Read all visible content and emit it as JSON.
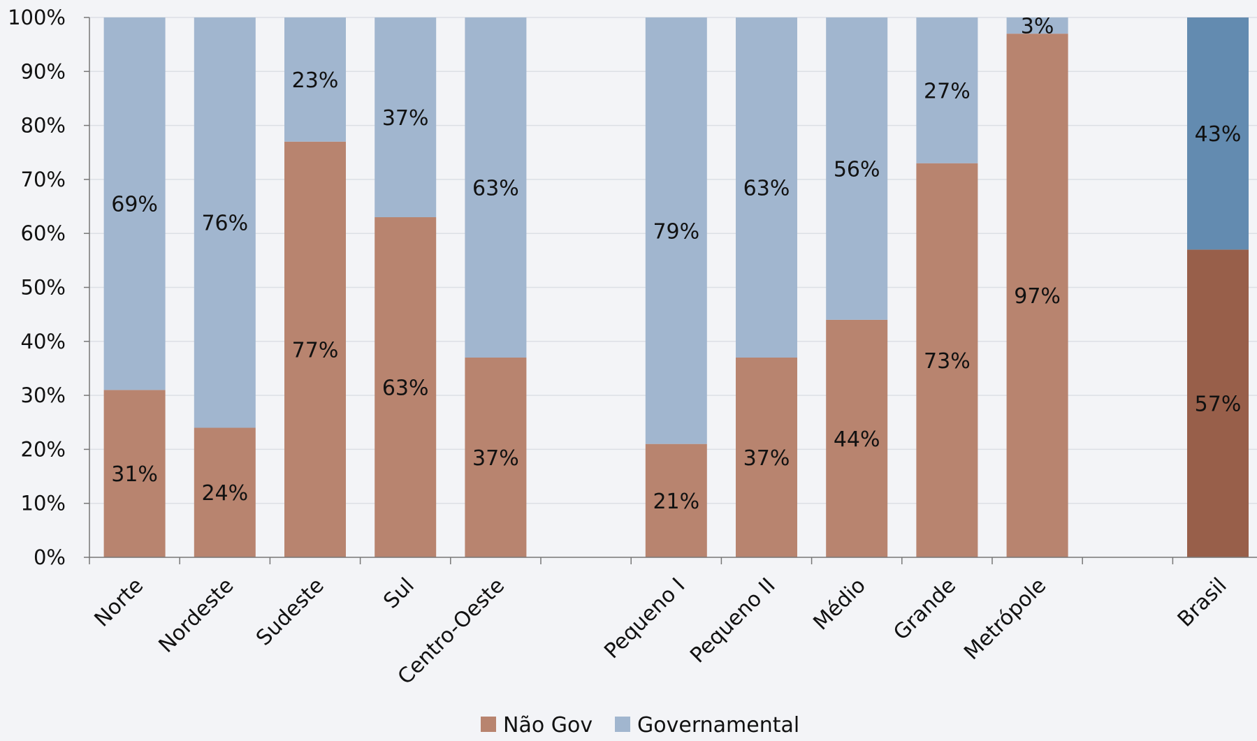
{
  "chart_data": {
    "type": "bar",
    "stacked": true,
    "percent_stacked": true,
    "title": "",
    "xlabel": "",
    "ylabel": "",
    "ylim": [
      0,
      100
    ],
    "yticks": [
      "0%",
      "10%",
      "20%",
      "30%",
      "40%",
      "50%",
      "60%",
      "70%",
      "80%",
      "90%",
      "100%"
    ],
    "grid": true,
    "legend_position": "bottom",
    "categories": [
      "Norte",
      "Nordeste",
      "Sudeste",
      "Sul",
      "Centro-Oeste",
      "",
      "Pequeno I",
      "Pequeno II",
      "Médio",
      "Grande",
      "Metrópole",
      "",
      "Brasil"
    ],
    "series": [
      {
        "name": "Não Gov",
        "color": "#b8846f",
        "highlight_color": "#985f4a",
        "values": [
          31,
          24,
          77,
          63,
          37,
          null,
          21,
          37,
          44,
          73,
          97,
          null,
          57
        ],
        "labels": [
          "31%",
          "24%",
          "77%",
          "63%",
          "37%",
          "",
          "21%",
          "37%",
          "44%",
          "73%",
          "97%",
          "",
          "57%"
        ]
      },
      {
        "name": "Governamental",
        "color": "#a1b6cf",
        "highlight_color": "#638bb0",
        "values": [
          69,
          76,
          23,
          37,
          63,
          null,
          79,
          63,
          56,
          27,
          3,
          null,
          43
        ],
        "labels": [
          "69%",
          "76%",
          "23%",
          "37%",
          "63%",
          "",
          "79%",
          "63%",
          "56%",
          "27%",
          "3%",
          "",
          "43%"
        ]
      }
    ],
    "highlighted_category": "Brasil"
  }
}
